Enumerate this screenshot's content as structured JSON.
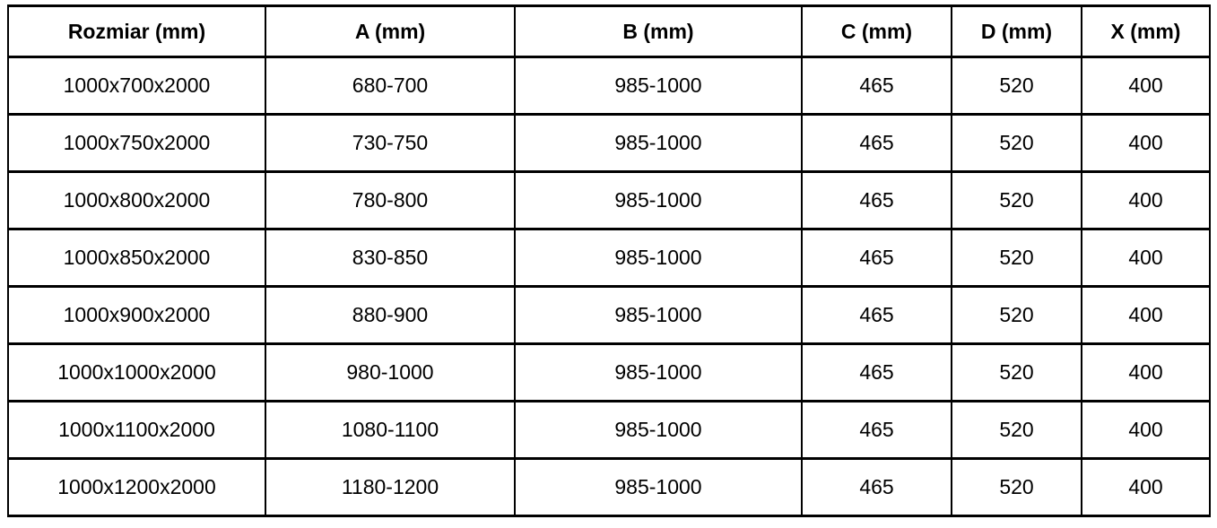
{
  "colors": {
    "background": "#ffffff",
    "border": "#000000",
    "text": "#000000"
  },
  "table": {
    "headers": [
      "Rozmiar (mm)",
      "A (mm)",
      "B (mm)",
      "C (mm)",
      "D (mm)",
      "X (mm)"
    ],
    "rows": [
      [
        "1000x700x2000",
        "680-700",
        "985-1000",
        "465",
        "520",
        "400"
      ],
      [
        "1000x750x2000",
        "730-750",
        "985-1000",
        "465",
        "520",
        "400"
      ],
      [
        "1000x800x2000",
        "780-800",
        "985-1000",
        "465",
        "520",
        "400"
      ],
      [
        "1000x850x2000",
        "830-850",
        "985-1000",
        "465",
        "520",
        "400"
      ],
      [
        "1000x900x2000",
        "880-900",
        "985-1000",
        "465",
        "520",
        "400"
      ],
      [
        "1000x1000x2000",
        "980-1000",
        "985-1000",
        "465",
        "520",
        "400"
      ],
      [
        "1000x1100x2000",
        "1080-1100",
        "985-1000",
        "465",
        "520",
        "400"
      ],
      [
        "1000x1200x2000",
        "1180-1200",
        "985-1000",
        "465",
        "520",
        "400"
      ]
    ]
  },
  "chart_data": {
    "type": "table",
    "title": "",
    "columns": [
      "Rozmiar (mm)",
      "A (mm)",
      "B (mm)",
      "C (mm)",
      "D (mm)",
      "X (mm)"
    ],
    "rows": [
      [
        "1000x700x2000",
        "680-700",
        "985-1000",
        465,
        520,
        400
      ],
      [
        "1000x750x2000",
        "730-750",
        "985-1000",
        465,
        520,
        400
      ],
      [
        "1000x800x2000",
        "780-800",
        "985-1000",
        465,
        520,
        400
      ],
      [
        "1000x850x2000",
        "830-850",
        "985-1000",
        465,
        520,
        400
      ],
      [
        "1000x900x2000",
        "880-900",
        "985-1000",
        465,
        520,
        400
      ],
      [
        "1000x1000x2000",
        "980-1000",
        "985-1000",
        465,
        520,
        400
      ],
      [
        "1000x1100x2000",
        "1080-1100",
        "985-1000",
        465,
        520,
        400
      ],
      [
        "1000x1200x2000",
        "1180-1200",
        "985-1000",
        465,
        520,
        400
      ]
    ]
  }
}
